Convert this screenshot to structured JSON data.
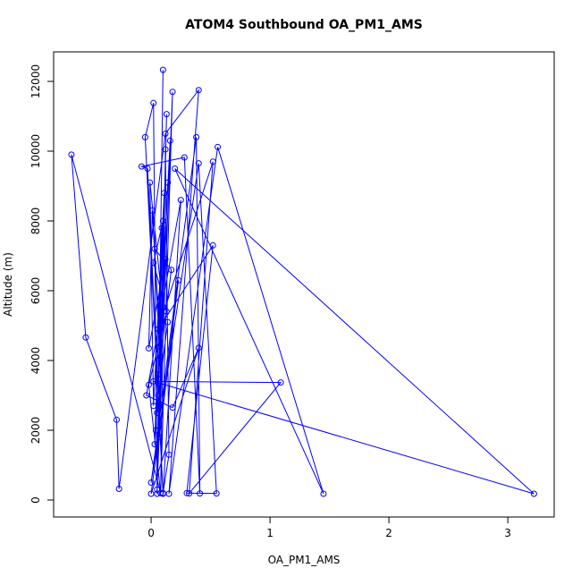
{
  "chart_data": {
    "type": "line",
    "title": "ATOM4 Southbound OA_PM1_AMS",
    "x_label": "OA_PM1_AMS",
    "y_label": "Altitude (m)",
    "color": "#0000ff",
    "x": [
      0.1,
      0.05,
      0.18,
      0.08,
      -0.67,
      -0.55,
      -0.29,
      -0.27,
      0.12,
      0.4,
      0.15,
      0.56,
      1.45,
      0.2,
      3.22,
      0.02,
      1.09,
      0.32,
      0.52,
      0.06,
      0.52,
      0.3,
      0.55,
      0.4,
      0.0,
      0.38,
      0.41,
      0.28,
      -0.08,
      -0.03,
      0.1,
      -0.05,
      0.02,
      0.05,
      0.13,
      0.07,
      0.23,
      0.0,
      0.4,
      0.18,
      -0.04,
      0.25,
      0.1,
      0.15,
      0.12,
      0.08,
      -0.02,
      0.13,
      0.02,
      0.1,
      0.05,
      0.14,
      0.08,
      0.03,
      0.17,
      0.06,
      0.11,
      0.02,
      -0.01,
      0.09,
      0.04,
      0.16,
      0.07,
      0.01,
      -0.02,
      0.12,
      0.03,
      0.09,
      0.06,
      0.14
    ],
    "values": [
      12330,
      300,
      11700,
      200,
      9900,
      4660,
      2300,
      320,
      10500,
      11750,
      180,
      10120,
      180,
      9500,
      180,
      3400,
      3370,
      190,
      9700,
      4900,
      7300,
      200,
      190,
      9650,
      500,
      10400,
      190,
      9820,
      9560,
      9500,
      180,
      10400,
      11380,
      180,
      11060,
      1800,
      6300,
      180,
      4360,
      2650,
      3000,
      8600,
      200,
      1300,
      10050,
      200,
      3300,
      5400,
      6800,
      8000,
      2500,
      9100,
      4100,
      7200,
      6600,
      3600,
      8800,
      2700,
      9100,
      5800,
      2000,
      10300,
      4400,
      8300,
      4350,
      6900,
      1600,
      7800,
      3000,
      5100
    ],
    "xlim": [
      -0.82,
      3.39
    ],
    "ylim": [
      -487,
      12846
    ],
    "xticks": [
      0,
      1,
      2,
      3
    ],
    "yticks": [
      0,
      2000,
      4000,
      6000,
      8000,
      10000,
      12000
    ]
  }
}
